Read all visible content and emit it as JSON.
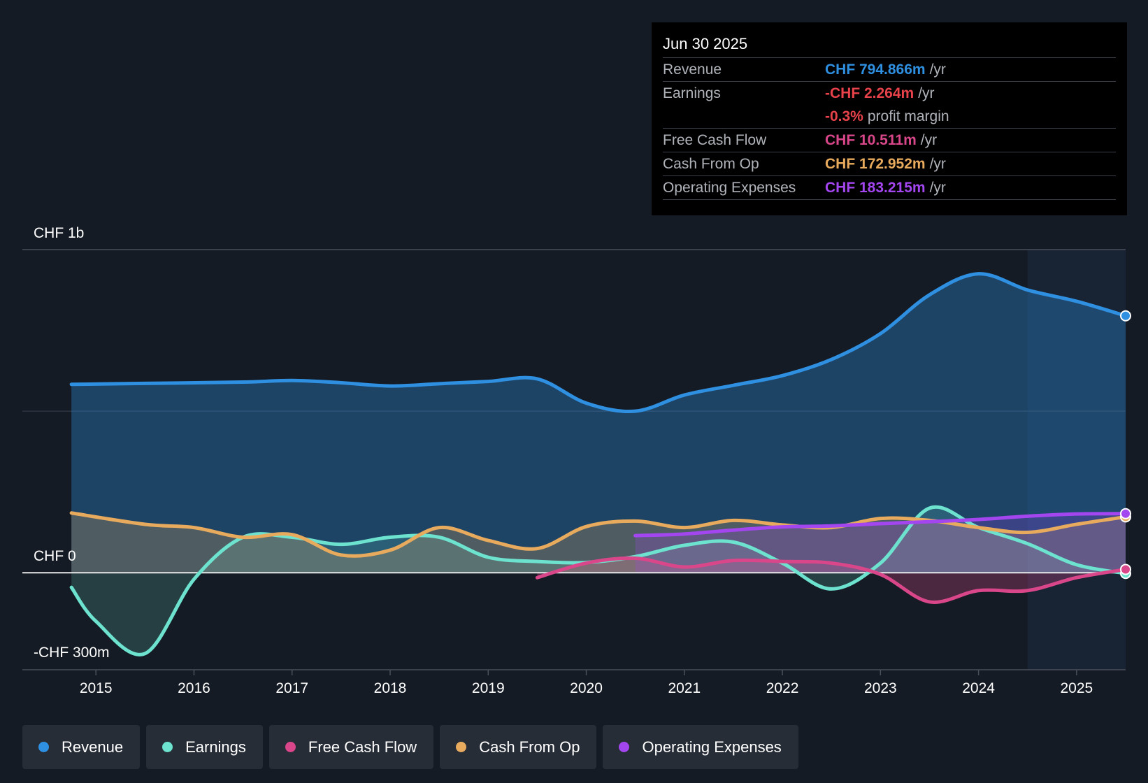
{
  "tooltip": {
    "date": "Jun 30 2025",
    "rows": [
      {
        "label": "Revenue",
        "value": "CHF 794.866m",
        "unit": "/yr",
        "color": "#2f8fe0"
      },
      {
        "label": "Earnings",
        "value": "-CHF 2.264m",
        "unit": "/yr",
        "color": "#e8424a"
      },
      {
        "label": "",
        "value": "-0.3%",
        "unit": "profit margin",
        "color": "#e8424a"
      },
      {
        "label": "Free Cash Flow",
        "value": "CHF 10.511m",
        "unit": "/yr",
        "color": "#d9478a"
      },
      {
        "label": "Cash From Op",
        "value": "CHF 172.952m",
        "unit": "/yr",
        "color": "#e8ab5e"
      },
      {
        "label": "Operating Expenses",
        "value": "CHF 183.215m",
        "unit": "/yr",
        "color": "#a346f0"
      }
    ]
  },
  "legend": [
    {
      "label": "Revenue",
      "color": "#2f8fe0"
    },
    {
      "label": "Earnings",
      "color": "#6de3cf"
    },
    {
      "label": "Free Cash Flow",
      "color": "#d9478a"
    },
    {
      "label": "Cash From Op",
      "color": "#e8ab5e"
    },
    {
      "label": "Operating Expenses",
      "color": "#a346f0"
    }
  ],
  "chart_data": {
    "type": "line",
    "title": "",
    "ylabel_top": "CHF 1b",
    "ylabel_zero": "CHF 0",
    "ylabel_bottom": "-CHF 300m",
    "ylim": [
      -300,
      1000
    ],
    "xlim": [
      2014.5,
      2025.5
    ],
    "x_ticks": [
      "2015",
      "2016",
      "2017",
      "2018",
      "2019",
      "2020",
      "2021",
      "2022",
      "2023",
      "2024",
      "2025"
    ],
    "forecast_region_start": 2024.5,
    "series": [
      {
        "name": "Revenue",
        "color": "#2f8fe0",
        "fill": true,
        "points": [
          [
            2014.75,
            583
          ],
          [
            2015.5,
            586
          ],
          [
            2016.5,
            590
          ],
          [
            2017.0,
            595
          ],
          [
            2017.5,
            588
          ],
          [
            2018.0,
            578
          ],
          [
            2018.5,
            585
          ],
          [
            2019.0,
            592
          ],
          [
            2019.5,
            600
          ],
          [
            2020.0,
            525
          ],
          [
            2020.5,
            500
          ],
          [
            2021.0,
            550
          ],
          [
            2021.5,
            580
          ],
          [
            2022.0,
            610
          ],
          [
            2022.5,
            660
          ],
          [
            2023.0,
            740
          ],
          [
            2023.5,
            860
          ],
          [
            2024.0,
            925
          ],
          [
            2024.5,
            875
          ],
          [
            2025.0,
            840
          ],
          [
            2025.5,
            795
          ]
        ]
      },
      {
        "name": "Earnings",
        "color": "#6de3cf",
        "fill": true,
        "points": [
          [
            2014.75,
            -45
          ],
          [
            2015.0,
            -150
          ],
          [
            2015.5,
            -250
          ],
          [
            2016.0,
            -20
          ],
          [
            2016.5,
            110
          ],
          [
            2017.0,
            110
          ],
          [
            2017.5,
            88
          ],
          [
            2018.0,
            110
          ],
          [
            2018.5,
            110
          ],
          [
            2019.0,
            48
          ],
          [
            2019.5,
            35
          ],
          [
            2020.0,
            32
          ],
          [
            2020.5,
            50
          ],
          [
            2021.0,
            85
          ],
          [
            2021.5,
            95
          ],
          [
            2022.0,
            30
          ],
          [
            2022.5,
            -50
          ],
          [
            2023.0,
            30
          ],
          [
            2023.5,
            200
          ],
          [
            2024.0,
            140
          ],
          [
            2024.5,
            90
          ],
          [
            2025.0,
            25
          ],
          [
            2025.5,
            -2
          ]
        ]
      },
      {
        "name": "Free Cash Flow",
        "color": "#d9478a",
        "fill": true,
        "points": [
          [
            2019.5,
            -15
          ],
          [
            2020.0,
            30
          ],
          [
            2020.5,
            45
          ],
          [
            2021.0,
            18
          ],
          [
            2021.5,
            38
          ],
          [
            2022.0,
            35
          ],
          [
            2022.5,
            30
          ],
          [
            2023.0,
            -5
          ],
          [
            2023.5,
            -90
          ],
          [
            2024.0,
            -55
          ],
          [
            2024.5,
            -55
          ],
          [
            2025.0,
            -15
          ],
          [
            2025.5,
            10.5
          ]
        ]
      },
      {
        "name": "Cash From Op",
        "color": "#e8ab5e",
        "fill": true,
        "points": [
          [
            2014.75,
            185
          ],
          [
            2015.5,
            150
          ],
          [
            2016.0,
            140
          ],
          [
            2016.5,
            110
          ],
          [
            2017.0,
            118
          ],
          [
            2017.5,
            55
          ],
          [
            2018.0,
            70
          ],
          [
            2018.5,
            140
          ],
          [
            2019.0,
            100
          ],
          [
            2019.5,
            75
          ],
          [
            2020.0,
            143
          ],
          [
            2020.5,
            160
          ],
          [
            2021.0,
            140
          ],
          [
            2021.5,
            162
          ],
          [
            2022.0,
            148
          ],
          [
            2022.5,
            140
          ],
          [
            2023.0,
            168
          ],
          [
            2023.5,
            162
          ],
          [
            2024.0,
            140
          ],
          [
            2024.5,
            125
          ],
          [
            2025.0,
            150
          ],
          [
            2025.5,
            173
          ]
        ]
      },
      {
        "name": "Operating Expenses",
        "color": "#a346f0",
        "fill": true,
        "points": [
          [
            2020.5,
            115
          ],
          [
            2021.0,
            120
          ],
          [
            2021.5,
            132
          ],
          [
            2022.0,
            142
          ],
          [
            2022.5,
            145
          ],
          [
            2023.0,
            152
          ],
          [
            2023.5,
            158
          ],
          [
            2024.0,
            165
          ],
          [
            2024.5,
            175
          ],
          [
            2025.0,
            182
          ],
          [
            2025.5,
            183
          ]
        ]
      }
    ]
  }
}
